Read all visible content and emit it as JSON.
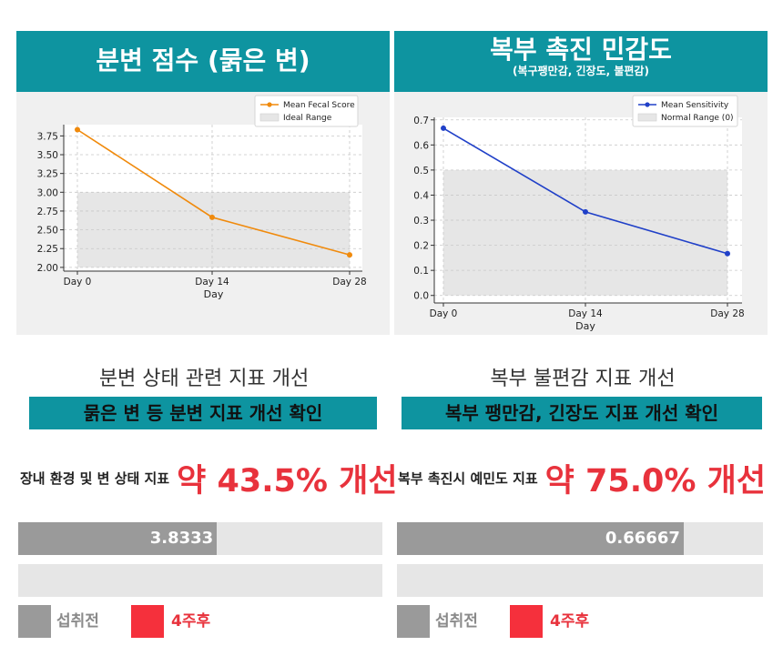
{
  "left": {
    "title": "분변 점수 (묽은 변)",
    "heading": "분변 상태 관련 지표 개선",
    "highlight": "묽은 변 등 분변 지표 개선 확인",
    "metric_label": "장내 환경 및 변 상태 지표",
    "metric_value": "약 43.5% 개선",
    "bar_before_label": "3.8333",
    "before_fraction": 0.5455,
    "after_fraction": 0,
    "legend_before": "섭취전",
    "legend_after": "4주후"
  },
  "right": {
    "title": "복부 촉진 민감도",
    "subtitle": "(복구팽만감, 긴장도, 불편감)",
    "heading": "복부 불편감 지표 개선",
    "highlight": "복부 팽만감, 긴장도 지표 개선 확인",
    "metric_label": "복부 촉진시 예민도 지표",
    "metric_value": "약 75.0% 개선",
    "bar_before_label": "0.66667",
    "before_fraction": 0.7833,
    "after_fraction": 0,
    "legend_before": "섭취전",
    "legend_after": "4주후"
  },
  "colors": {
    "teal": "#0e94a0",
    "red": "#e8323c",
    "gray": "#9a9a9a",
    "track": "#e6e6e6"
  },
  "chart_data": [
    {
      "type": "line",
      "x": [
        "Day 0",
        "Day 14",
        "Day 28"
      ],
      "series": [
        {
          "name": "Mean Fecal Score",
          "values": [
            3.8333,
            2.6667,
            2.1667
          ],
          "color": "#f08a0c"
        }
      ],
      "band": {
        "name": "Ideal Range",
        "range": [
          2.0,
          3.0
        ]
      },
      "xlabel": "Day",
      "ylabel": "",
      "ylim": [
        1.95,
        3.9
      ],
      "yticks": [
        "2.00",
        "2.25",
        "2.50",
        "2.75",
        "3.00",
        "3.25",
        "3.50",
        "3.75"
      ],
      "ytick_values": [
        2.0,
        2.25,
        2.5,
        2.75,
        3.0,
        3.25,
        3.5,
        3.75
      ],
      "grid": true,
      "legend": "top-right"
    },
    {
      "type": "line",
      "x": [
        "Day 0",
        "Day 14",
        "Day 28"
      ],
      "series": [
        {
          "name": "Mean Sensitivity",
          "values": [
            0.6667,
            0.3333,
            0.1667
          ],
          "color": "#2040c8"
        }
      ],
      "band": {
        "name": "Normal Range (0)",
        "range": [
          0.0,
          0.5
        ]
      },
      "xlabel": "Day",
      "ylabel": "",
      "ylim": [
        -0.03,
        0.71
      ],
      "yticks": [
        "0.0",
        "0.1",
        "0.2",
        "0.3",
        "0.4",
        "0.5",
        "0.6",
        "0.7"
      ],
      "ytick_values": [
        0.0,
        0.1,
        0.2,
        0.3,
        0.4,
        0.5,
        0.6,
        0.7
      ],
      "grid": true,
      "legend": "top-right"
    }
  ]
}
